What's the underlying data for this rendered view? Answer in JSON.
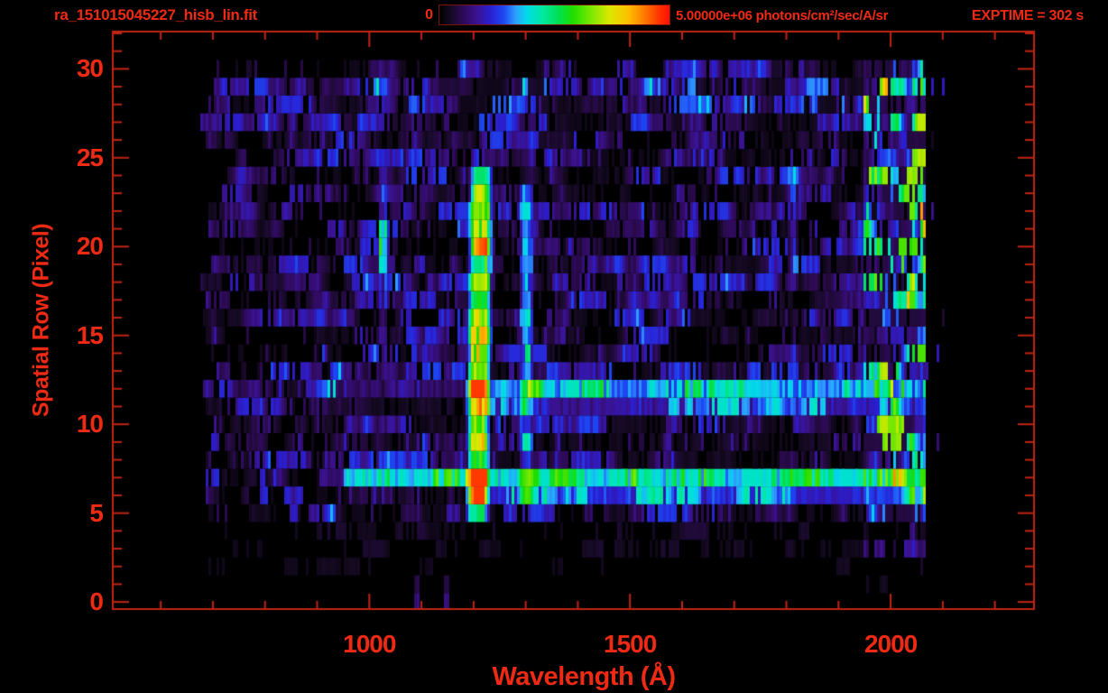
{
  "chart_data": {
    "type": "heatmap",
    "title": "ra_151015045227_hisb_lin.fit",
    "xlabel": "Wavelength (Å)",
    "ylabel": "Spatial Row (Pixel)",
    "exptime_label": "EXPTIME = 302 s",
    "x_range": [
      508,
      2275
    ],
    "y_range": [
      -0.4,
      32.1
    ],
    "x_major_ticks": [
      1000,
      1500,
      2000
    ],
    "x_minor_step": 100,
    "x_minor_from": 600,
    "x_minor_to": 2200,
    "y_major_ticks": [
      0,
      5,
      10,
      15,
      20,
      25,
      30
    ],
    "y_minor_step": 1,
    "y_minor_to": 32,
    "grid": false,
    "colors": {
      "text": "#ee2a14",
      "axis": "#c22414",
      "background": "#000000",
      "colorbar_border": "#7a1408"
    },
    "colorbar": {
      "min": 0,
      "max": 5000000,
      "min_label": "0",
      "max_label": "5.00000e+06 photons/cm²/sec/A/sr"
    },
    "colormap_stops": [
      [
        0.0,
        "#000000"
      ],
      [
        0.05,
        "#160a24"
      ],
      [
        0.1,
        "#2d0a55"
      ],
      [
        0.16,
        "#3a128f"
      ],
      [
        0.22,
        "#2a1ed0"
      ],
      [
        0.28,
        "#1c48f2"
      ],
      [
        0.33,
        "#2f9cff"
      ],
      [
        0.38,
        "#00dce8"
      ],
      [
        0.45,
        "#00e8a0"
      ],
      [
        0.52,
        "#00e050"
      ],
      [
        0.58,
        "#1ede00"
      ],
      [
        0.66,
        "#7ce800"
      ],
      [
        0.74,
        "#dce800"
      ],
      [
        0.82,
        "#ffc000"
      ],
      [
        0.9,
        "#ff7000"
      ],
      [
        0.96,
        "#ff2e00"
      ],
      [
        1.0,
        "#ff1200"
      ]
    ],
    "data_extent": {
      "lambda_min": 677,
      "lambda_max": 2067,
      "lambda_stray_max": 2100,
      "row_min": 0,
      "row_max": 30
    },
    "row_intensity": [
      0.03,
      0.05,
      0.1,
      0.13,
      0.15,
      0.55,
      0.6,
      0.62,
      0.58,
      0.55,
      0.58,
      0.6,
      0.62,
      0.58,
      0.5,
      0.5,
      0.52,
      0.5,
      0.52,
      0.55,
      0.5,
      0.5,
      0.52,
      0.52,
      0.55,
      0.58,
      0.55,
      0.58,
      0.62,
      0.68,
      0.5
    ],
    "features": {
      "emission_lines": [
        {
          "name": "Lyman-alpha",
          "center": 1211,
          "halfwidth": 12,
          "tilt_per_row": 0.4,
          "row_min": 5,
          "row_max": 24,
          "intensity": 0.5,
          "bright_rows": [
            6,
            7,
            9,
            12,
            16,
            20
          ],
          "bright_boost": 0.2
        },
        {
          "name": "OI-1304",
          "center": 1302,
          "halfwidth": 7,
          "tilt_per_row": 0,
          "row_min": 6,
          "row_max": 23,
          "intensity": 0.24
        },
        {
          "name": "Lyman-beta",
          "center": 1026,
          "halfwidth": 5,
          "tilt_per_row": 0,
          "row_min": 15,
          "row_max": 24,
          "intensity": 0.11,
          "blob_rows": [
            19,
            21
          ],
          "blob_boost": 0.22
        },
        {
          "name": "line-1813",
          "center": 1813,
          "halfwidth": 5,
          "tilt_per_row": 0,
          "row_min": 18,
          "row_max": 24,
          "intensity": 0.11
        }
      ],
      "bright_rows": [
        {
          "row": 12,
          "lambda_min": 1185,
          "intensity": 0.28,
          "faint_from": 920,
          "faint_intensity": 0.08
        },
        {
          "row": 11,
          "lambda_min": 1185,
          "intensity": 0.13,
          "faint_from": null,
          "faint_intensity": 0
        },
        {
          "row": 7,
          "lambda_min": 950,
          "intensity": 0.3,
          "faint_from": 905,
          "faint_intensity": 0.1
        },
        {
          "row": 6,
          "lambda_min": 1200,
          "intensity": 0.18,
          "faint_from": null,
          "faint_intensity": 0
        }
      ],
      "right_band": {
        "lambda_min": 1950,
        "lambda_max": 2067,
        "boost": 2.6
      },
      "bottom_columns": [
        {
          "lambda": 1093,
          "halfwidth": 5,
          "rows": [
            0,
            1
          ],
          "intensity": 0.14
        },
        {
          "lambda": 1148,
          "halfwidth": 5,
          "rows": [
            0,
            1
          ],
          "intensity": 0.14
        }
      ]
    }
  }
}
